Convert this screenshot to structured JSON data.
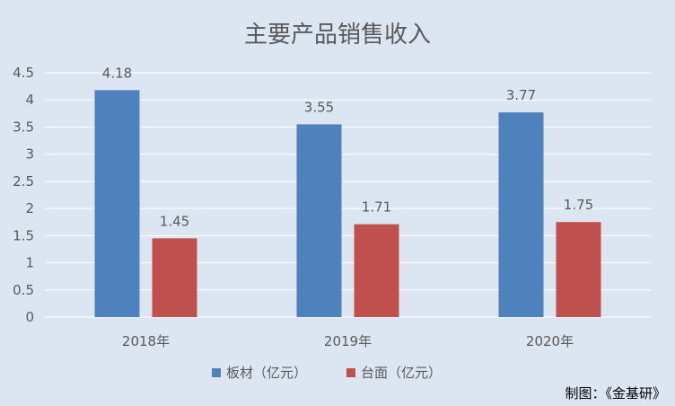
{
  "chart_data": {
    "type": "bar",
    "title": "主要产品销售收入",
    "categories": [
      "2018年",
      "2019年",
      "2020年"
    ],
    "series": [
      {
        "name": "板材（亿元）",
        "values": [
          4.18,
          3.55,
          3.77
        ],
        "color": "#4f81bd"
      },
      {
        "name": "台面（亿元）",
        "values": [
          1.45,
          1.71,
          1.75
        ],
        "color": "#c0504d"
      }
    ],
    "ylim": [
      0,
      4.5
    ],
    "yticks": [
      "0",
      "0.5",
      "1",
      "1.5",
      "2",
      "2.5",
      "3",
      "3.5",
      "4",
      "4.5"
    ],
    "grid": true,
    "legend_position": "bottom",
    "data_labels": true
  },
  "credit": "制图：《金基研》",
  "colors": {
    "background": "#dce6f2",
    "gridline": "#ffffff",
    "text": "#595959"
  }
}
